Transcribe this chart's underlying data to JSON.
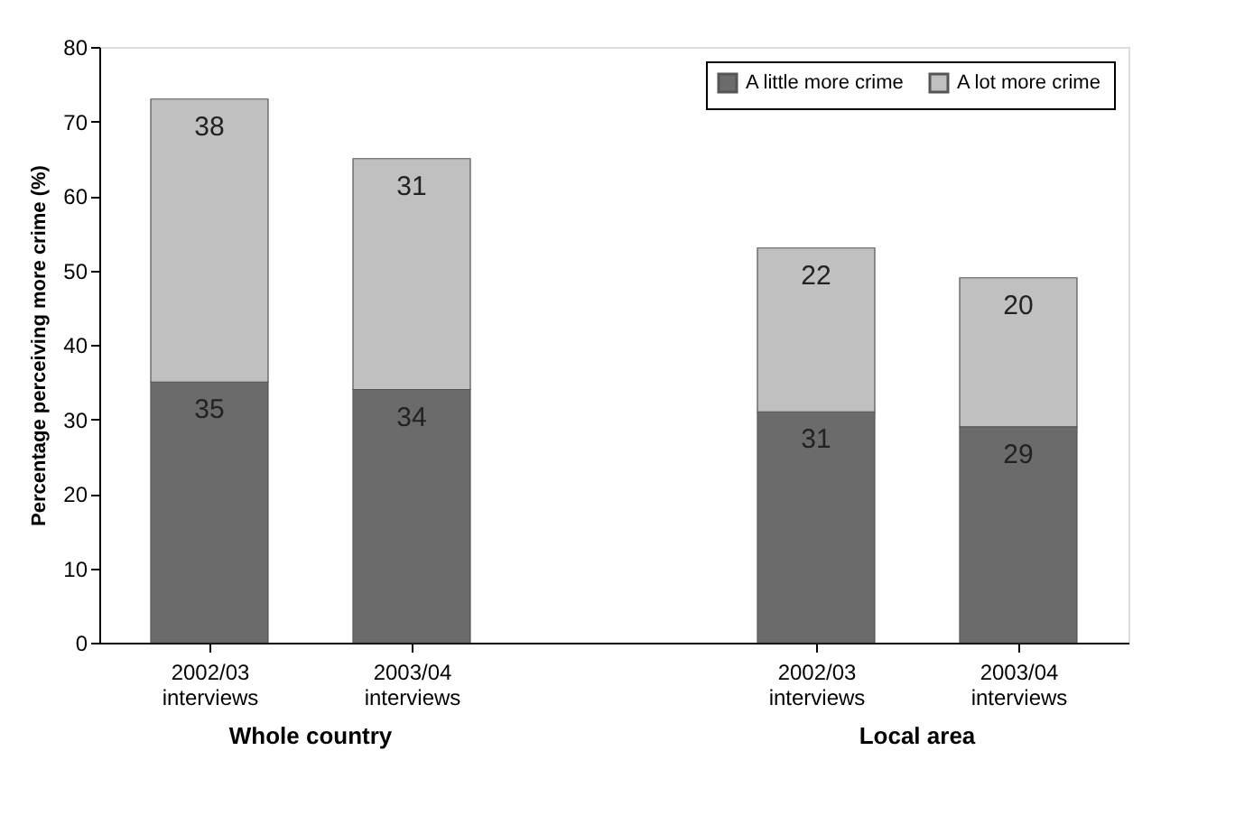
{
  "chart_data": {
    "type": "bar",
    "stacked": true,
    "categories": [
      "2002/03\ninterviews",
      "2003/04\ninterviews",
      null,
      "2002/03\ninterviews",
      "2003/04\ninterviews"
    ],
    "series": [
      {
        "name": "A little more crime",
        "color": "#6b6b6b",
        "values": [
          35,
          34,
          null,
          31,
          29
        ]
      },
      {
        "name": "A lot more crime",
        "color": "#c0c0c0",
        "values": [
          38,
          31,
          null,
          22,
          20
        ]
      }
    ],
    "ylabel": "Percentage perceiving more crime (%)",
    "ylim": [
      0,
      80
    ],
    "yticks": [
      0,
      10,
      20,
      30,
      40,
      50,
      60,
      70,
      80
    ],
    "data_labels": true,
    "legend": "top right",
    "grid": false,
    "annotations": [
      "Whole country",
      "Local area"
    ]
  }
}
